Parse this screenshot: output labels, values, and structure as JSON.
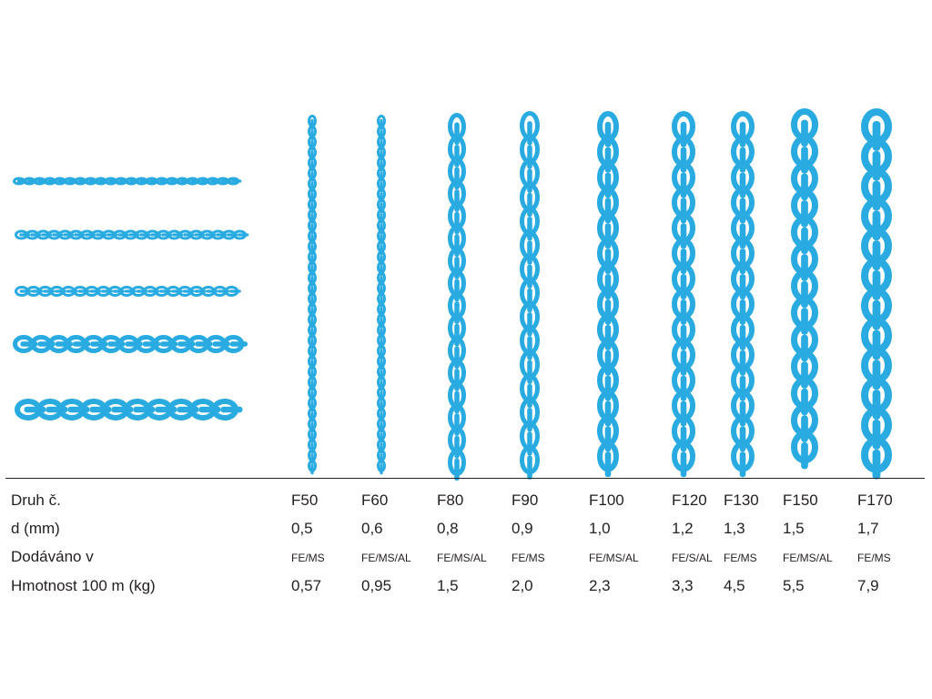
{
  "chain_color": "#29abe2",
  "row_labels": {
    "type": "Druh č.",
    "diameter": "d (mm)",
    "supplied": "Dodáváno v",
    "weight": "Hmotnost 100 m (kg)"
  },
  "chains": [
    {
      "type": "F50",
      "diameter": "0,5",
      "supplied": "FE/MS",
      "weight": "0,57"
    },
    {
      "type": "F60",
      "diameter": "0,6",
      "supplied": "FE/MS/AL",
      "weight": "0,95"
    },
    {
      "type": "F80",
      "diameter": "0,8",
      "supplied": "FE/MS/AL",
      "weight": "1,5"
    },
    {
      "type": "F90",
      "diameter": "0,9",
      "supplied": "FE/MS",
      "weight": "2,0"
    },
    {
      "type": "F100",
      "diameter": "1,0",
      "supplied": "FE/MS/AL",
      "weight": "2,3"
    },
    {
      "type": "F120",
      "diameter": "1,2",
      "supplied": "FE/S/AL",
      "weight": "3,3"
    },
    {
      "type": "F130",
      "diameter": "1,3",
      "supplied": "FE/MS",
      "weight": "4,5"
    },
    {
      "type": "F150",
      "diameter": "1,5",
      "supplied": "FE/MS/AL",
      "weight": "5,5"
    },
    {
      "type": "F170",
      "diameter": "1,7",
      "supplied": "FE/MS",
      "weight": "7,9"
    }
  ]
}
